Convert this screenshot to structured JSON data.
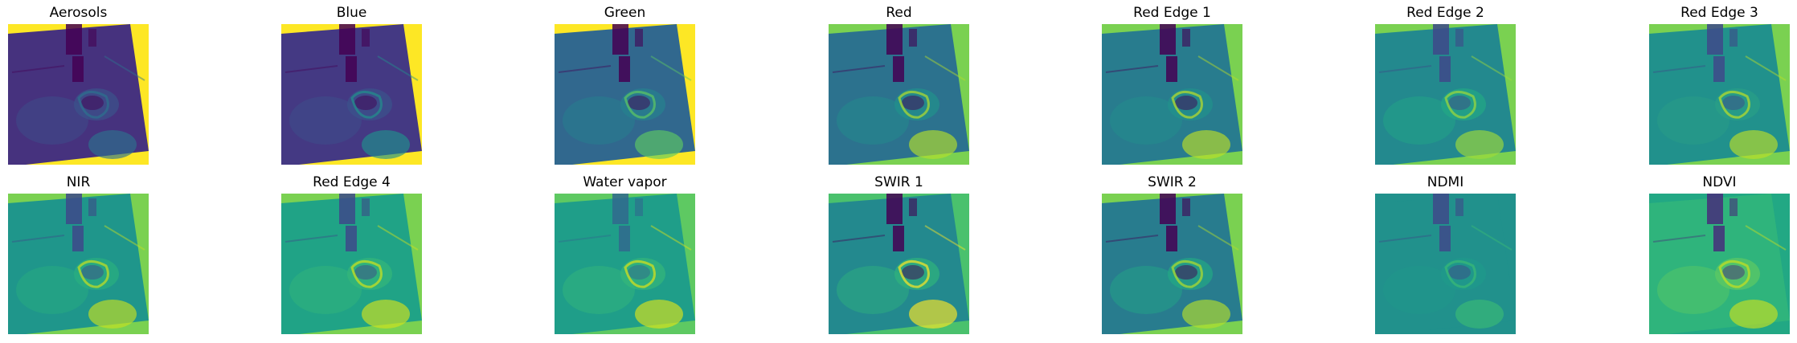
{
  "figure": {
    "rows": [
      {
        "panels": [
          {
            "title": "Aerosols",
            "palette": {
              "fill": "#46327e",
              "corner": "#fde725",
              "mid": "#3b528b",
              "light": "#2c728e",
              "dark": "#440154"
            }
          },
          {
            "title": "Blue",
            "palette": {
              "fill": "#443983",
              "corner": "#fde725",
              "mid": "#3b528b",
              "light": "#21918c",
              "dark": "#440154"
            }
          },
          {
            "title": "Green",
            "palette": {
              "fill": "#31688e",
              "corner": "#fde725",
              "mid": "#26828e",
              "light": "#5ec962",
              "dark": "#440154"
            }
          },
          {
            "title": "Red",
            "palette": {
              "fill": "#2c728e",
              "corner": "#7ad151",
              "mid": "#21918c",
              "light": "#b5de2b",
              "dark": "#440154"
            }
          },
          {
            "title": "Red Edge 1",
            "palette": {
              "fill": "#287c8e",
              "corner": "#7ad151",
              "mid": "#21918c",
              "light": "#bddf26",
              "dark": "#440154"
            }
          },
          {
            "title": "Red Edge 2",
            "palette": {
              "fill": "#23898e",
              "corner": "#7ad151",
              "mid": "#22a884",
              "light": "#a0da39",
              "dark": "#3e4989"
            }
          },
          {
            "title": "Red Edge 3",
            "palette": {
              "fill": "#21918c",
              "corner": "#7ad151",
              "mid": "#2a9f86",
              "light": "#bddf26",
              "dark": "#3e4989"
            }
          }
        ]
      },
      {
        "panels": [
          {
            "title": "NIR",
            "palette": {
              "fill": "#1f968b",
              "corner": "#7ad151",
              "mid": "#29af7f",
              "light": "#c8e020",
              "dark": "#3e4989"
            }
          },
          {
            "title": "Red Edge 4",
            "palette": {
              "fill": "#20a386",
              "corner": "#7ad151",
              "mid": "#35b779",
              "light": "#d2e21b",
              "dark": "#3e4989"
            }
          },
          {
            "title": "Water vapor",
            "palette": {
              "fill": "#1f9e89",
              "corner": "#5ec962",
              "mid": "#35b779",
              "light": "#dde318",
              "dark": "#31688e"
            }
          },
          {
            "title": "SWIR 1",
            "palette": {
              "fill": "#23898e",
              "corner": "#4ac16d",
              "mid": "#2fb47c",
              "light": "#fde725",
              "dark": "#440154"
            }
          },
          {
            "title": "SWIR 2",
            "palette": {
              "fill": "#287c8e",
              "corner": "#7ad151",
              "mid": "#22a884",
              "light": "#b5de2b",
              "dark": "#440154"
            }
          },
          {
            "title": "NDMI",
            "palette": {
              "fill": "#21918c",
              "corner": "#21918c",
              "mid": "#1f9a8a",
              "light": "#3bbb75",
              "dark": "#3e4989"
            }
          },
          {
            "title": "NDVI",
            "palette": {
              "fill": "#2fb47c",
              "corner": "#22a884",
              "mid": "#5ec962",
              "light": "#c8e020",
              "dark": "#472d7b"
            }
          }
        ]
      }
    ]
  }
}
